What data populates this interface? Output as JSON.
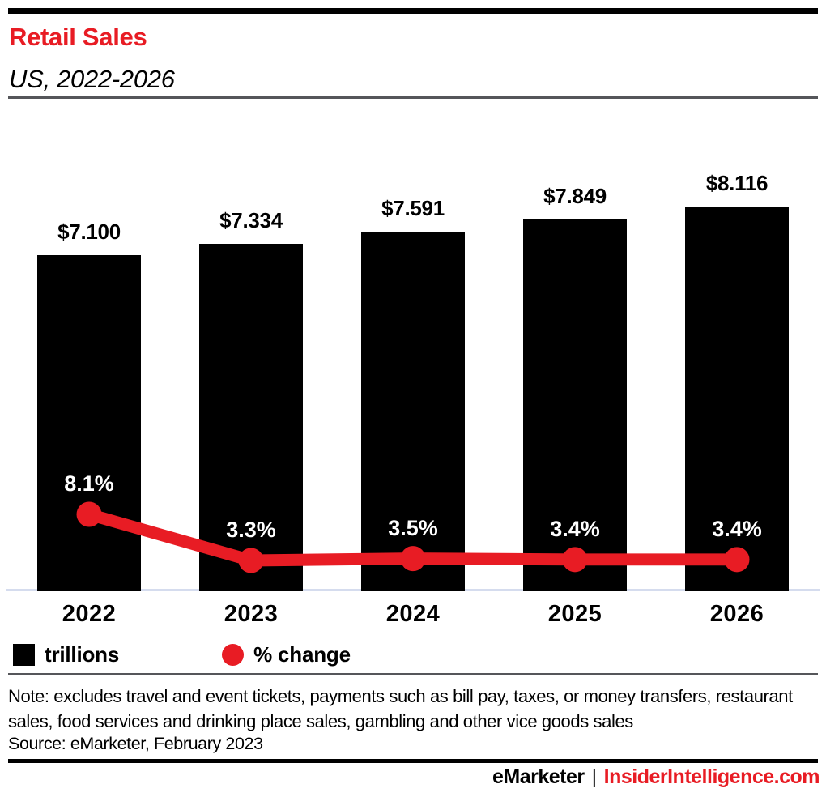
{
  "header": {
    "title": "Retail Sales",
    "subtitle": "US, 2022-2026"
  },
  "colors": {
    "accent_red": "#e81c24",
    "bar_black": "#000000",
    "baseline_gray": "#d5dcee",
    "rule_gray": "#55565a"
  },
  "chart_data": {
    "type": "bar",
    "categories": [
      "2022",
      "2023",
      "2024",
      "2025",
      "2026"
    ],
    "series": [
      {
        "name": "trillions",
        "type": "bar",
        "color": "#000000",
        "values": [
          7.1,
          7.334,
          7.591,
          7.849,
          8.116
        ],
        "labels": [
          "$7.100",
          "$7.334",
          "$7.591",
          "$7.849",
          "$8.116"
        ]
      },
      {
        "name": "% change",
        "type": "line",
        "color": "#e81c24",
        "values": [
          8.1,
          3.3,
          3.5,
          3.4,
          3.4
        ],
        "labels": [
          "8.1%",
          "3.3%",
          "3.5%",
          "3.4%",
          "3.4%"
        ]
      }
    ],
    "title": "Retail Sales",
    "subtitle": "US, 2022-2026",
    "xlabel": "",
    "ylabel": "",
    "ylim_bar_trillions": [
      0,
      8.5
    ],
    "grid": false,
    "legend_position": "bottom-left",
    "legend": [
      {
        "label": "trillions",
        "swatch": "square",
        "color": "#000000"
      },
      {
        "label": "% change",
        "swatch": "circle",
        "color": "#e81c24"
      }
    ]
  },
  "note": "Note: excludes travel and event tickets, payments such as bill pay, taxes, or money transfers, restaurant sales, food services and drinking place sales, gambling and other vice goods sales",
  "source": "Source: eMarketer, February 2023",
  "footer": {
    "brand": "eMarketer",
    "separator": "|",
    "site": "InsiderIntelligence.com"
  }
}
